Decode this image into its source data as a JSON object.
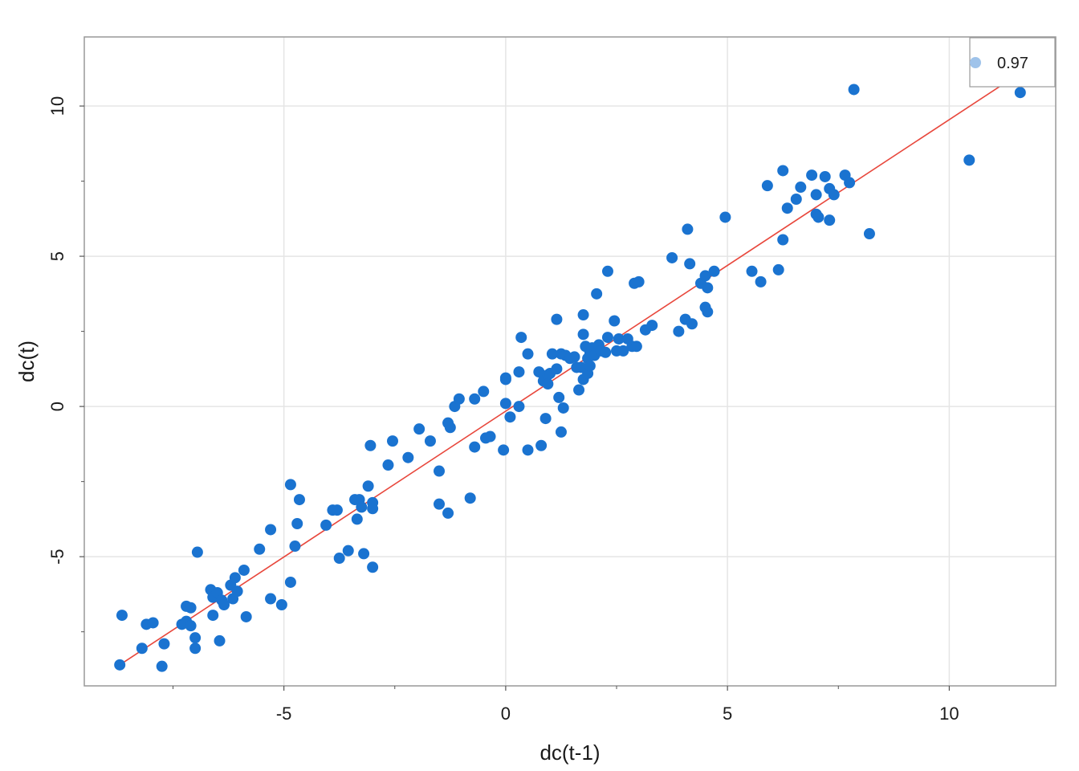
{
  "chart_data": {
    "type": "scatter",
    "xlabel": "dc(t-1)",
    "ylabel": "dc(t)",
    "xlim": [
      -9.5,
      12.4
    ],
    "ylim": [
      -9.3,
      12.3
    ],
    "xticks": [
      -5,
      0,
      5,
      10
    ],
    "xtick_labels": [
      "-5",
      "0",
      "5",
      "10"
    ],
    "yticks": [
      -5,
      0,
      5,
      10
    ],
    "ytick_labels": [
      "-5",
      "0",
      "5",
      "10"
    ],
    "x_minor_ticks": [
      -7.5,
      -2.5,
      2.5,
      7.5
    ],
    "y_minor_ticks": [
      -7.5,
      -2.5,
      2.5,
      7.5
    ],
    "grid": true,
    "legend_position": "top-right",
    "legend_label": "0.97",
    "point_color": "#1a73d0",
    "legend_point_color": "#9fc3ea",
    "line_color": "#e8473c",
    "grid_color": "#e5e5e5",
    "frame_color": "#999999",
    "fit_line": {
      "x": [
        -8.7,
        11.6
      ],
      "y": [
        -8.6,
        11.1
      ]
    },
    "points": [
      [
        -8.7,
        -8.6
      ],
      [
        -8.65,
        -6.95
      ],
      [
        -8.2,
        -8.05
      ],
      [
        -8.1,
        -7.25
      ],
      [
        -7.95,
        -7.2
      ],
      [
        -7.75,
        -8.65
      ],
      [
        -7.7,
        -7.9
      ],
      [
        -7.3,
        -7.25
      ],
      [
        -7.2,
        -7.15
      ],
      [
        -7.2,
        -6.65
      ],
      [
        -7.1,
        -7.3
      ],
      [
        -7.1,
        -6.7
      ],
      [
        -7.0,
        -7.7
      ],
      [
        -7.0,
        -8.05
      ],
      [
        -6.95,
        -4.85
      ],
      [
        -6.65,
        -6.1
      ],
      [
        -6.6,
        -6.35
      ],
      [
        -6.6,
        -6.95
      ],
      [
        -6.5,
        -6.2
      ],
      [
        -6.45,
        -7.8
      ],
      [
        -6.4,
        -6.45
      ],
      [
        -6.35,
        -6.6
      ],
      [
        -6.2,
        -5.95
      ],
      [
        -6.15,
        -6.4
      ],
      [
        -6.1,
        -5.7
      ],
      [
        -6.05,
        -6.15
      ],
      [
        -5.9,
        -5.45
      ],
      [
        -5.85,
        -7.0
      ],
      [
        -5.55,
        -4.75
      ],
      [
        -5.3,
        -4.1
      ],
      [
        -5.3,
        -6.4
      ],
      [
        -5.05,
        -6.6
      ],
      [
        -4.85,
        -5.85
      ],
      [
        -4.85,
        -2.6
      ],
      [
        -4.75,
        -4.65
      ],
      [
        -4.7,
        -3.9
      ],
      [
        -4.65,
        -3.1
      ],
      [
        -4.05,
        -3.95
      ],
      [
        -3.9,
        -3.45
      ],
      [
        -3.8,
        -3.45
      ],
      [
        -3.75,
        -5.05
      ],
      [
        -3.55,
        -4.8
      ],
      [
        -3.4,
        -3.1
      ],
      [
        -3.35,
        -3.75
      ],
      [
        -3.3,
        -3.1
      ],
      [
        -3.25,
        -3.35
      ],
      [
        -3.2,
        -4.9
      ],
      [
        -3.1,
        -2.65
      ],
      [
        -3.05,
        -1.3
      ],
      [
        -3.0,
        -3.2
      ],
      [
        -3.0,
        -3.4
      ],
      [
        -3.0,
        -5.35
      ],
      [
        -2.65,
        -1.95
      ],
      [
        -2.55,
        -1.15
      ],
      [
        -2.2,
        -1.7
      ],
      [
        -1.95,
        -0.75
      ],
      [
        -1.7,
        -1.15
      ],
      [
        -1.5,
        -2.15
      ],
      [
        -1.5,
        -3.25
      ],
      [
        -1.3,
        -0.55
      ],
      [
        -1.3,
        -3.55
      ],
      [
        -1.25,
        -0.7
      ],
      [
        -1.15,
        0.0
      ],
      [
        -1.05,
        0.25
      ],
      [
        -0.8,
        -3.05
      ],
      [
        -0.7,
        -1.35
      ],
      [
        -0.7,
        0.25
      ],
      [
        -0.5,
        0.5
      ],
      [
        -0.45,
        -1.05
      ],
      [
        -0.35,
        -1.0
      ],
      [
        -0.05,
        -1.45
      ],
      [
        0.0,
        0.1
      ],
      [
        0.0,
        0.95
      ],
      [
        0.0,
        0.9
      ],
      [
        0.1,
        -0.35
      ],
      [
        0.3,
        -0.0
      ],
      [
        0.3,
        1.15
      ],
      [
        0.35,
        2.3
      ],
      [
        0.5,
        1.75
      ],
      [
        0.5,
        -1.45
      ],
      [
        0.75,
        1.15
      ],
      [
        0.8,
        -1.3
      ],
      [
        0.85,
        0.85
      ],
      [
        0.9,
        -0.4
      ],
      [
        0.95,
        1.05
      ],
      [
        0.95,
        0.75
      ],
      [
        1.0,
        1.1
      ],
      [
        1.05,
        1.75
      ],
      [
        1.15,
        1.25
      ],
      [
        1.15,
        2.9
      ],
      [
        1.2,
        0.3
      ],
      [
        1.25,
        1.75
      ],
      [
        1.25,
        -0.85
      ],
      [
        1.3,
        -0.05
      ],
      [
        1.35,
        1.7
      ],
      [
        1.45,
        1.6
      ],
      [
        1.55,
        1.65
      ],
      [
        1.6,
        1.3
      ],
      [
        1.65,
        0.55
      ],
      [
        1.7,
        1.3
      ],
      [
        1.75,
        0.9
      ],
      [
        1.75,
        2.4
      ],
      [
        1.75,
        3.05
      ],
      [
        1.8,
        2.0
      ],
      [
        1.85,
        1.6
      ],
      [
        1.85,
        1.1
      ],
      [
        1.9,
        1.35
      ],
      [
        1.9,
        1.8
      ],
      [
        1.95,
        1.95
      ],
      [
        2.0,
        1.7
      ],
      [
        2.05,
        3.75
      ],
      [
        2.1,
        2.05
      ],
      [
        2.15,
        1.85
      ],
      [
        2.25,
        1.8
      ],
      [
        2.3,
        2.3
      ],
      [
        2.3,
        4.5
      ],
      [
        2.45,
        2.85
      ],
      [
        2.5,
        1.85
      ],
      [
        2.55,
        2.25
      ],
      [
        2.65,
        1.85
      ],
      [
        2.75,
        2.25
      ],
      [
        2.85,
        2.0
      ],
      [
        2.9,
        4.1
      ],
      [
        2.95,
        2.0
      ],
      [
        3.0,
        4.15
      ],
      [
        3.15,
        2.55
      ],
      [
        3.3,
        2.7
      ],
      [
        3.75,
        4.95
      ],
      [
        3.9,
        2.5
      ],
      [
        4.05,
        2.9
      ],
      [
        4.1,
        5.9
      ],
      [
        4.15,
        4.75
      ],
      [
        4.2,
        2.75
      ],
      [
        4.4,
        4.1
      ],
      [
        4.5,
        4.35
      ],
      [
        4.5,
        3.3
      ],
      [
        4.55,
        3.15
      ],
      [
        4.55,
        3.95
      ],
      [
        4.7,
        4.5
      ],
      [
        4.95,
        6.3
      ],
      [
        5.55,
        4.5
      ],
      [
        5.75,
        4.15
      ],
      [
        5.9,
        7.35
      ],
      [
        6.15,
        4.55
      ],
      [
        6.25,
        7.85
      ],
      [
        6.25,
        5.55
      ],
      [
        6.35,
        6.6
      ],
      [
        6.55,
        6.9
      ],
      [
        6.65,
        7.3
      ],
      [
        6.9,
        7.7
      ],
      [
        7.0,
        7.05
      ],
      [
        7.0,
        6.4
      ],
      [
        7.05,
        6.3
      ],
      [
        7.2,
        7.65
      ],
      [
        7.3,
        6.2
      ],
      [
        7.3,
        7.25
      ],
      [
        7.4,
        7.05
      ],
      [
        7.65,
        7.7
      ],
      [
        7.75,
        7.45
      ],
      [
        7.85,
        10.55
      ],
      [
        8.2,
        5.75
      ],
      [
        10.45,
        8.2
      ],
      [
        11.6,
        10.45
      ]
    ]
  }
}
